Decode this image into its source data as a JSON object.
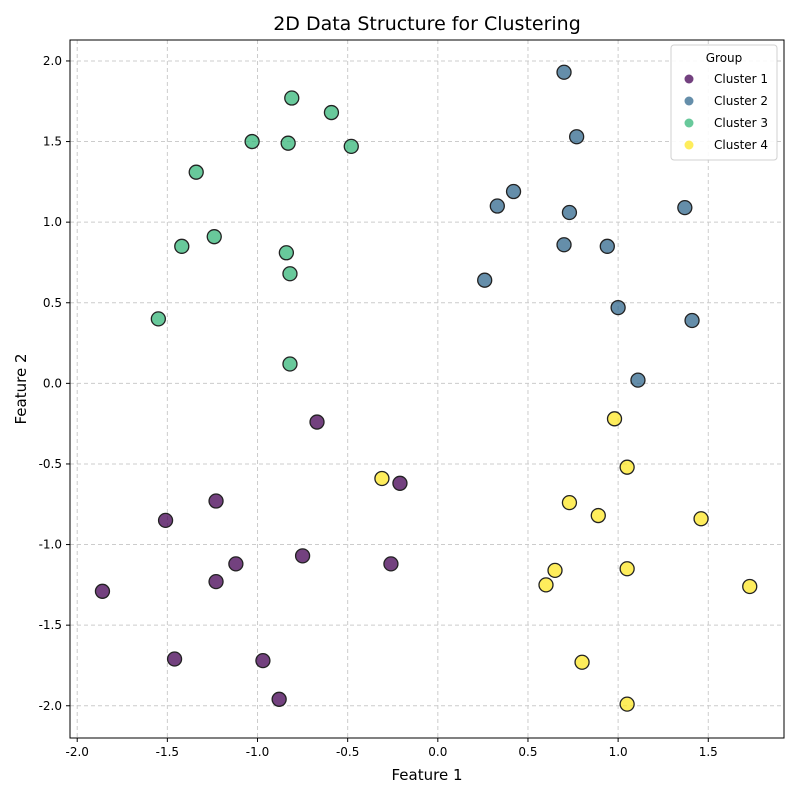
{
  "chart_data": {
    "type": "scatter",
    "title": "2D Data Structure for Clustering",
    "xlabel": "Feature 1",
    "ylabel": "Feature 2",
    "xlim": [
      -2.04,
      1.92
    ],
    "ylim": [
      -2.2,
      2.13
    ],
    "grid": true,
    "x_ticks": [
      -2.0,
      -1.5,
      -1.0,
      -0.5,
      0.0,
      0.5,
      1.0,
      1.5
    ],
    "x_tick_labels": [
      "-2.0",
      "-1.5",
      "-1.0",
      "-0.5",
      "0.0",
      "0.5",
      "1.0",
      "1.5"
    ],
    "y_ticks": [
      2.0,
      1.5,
      1.0,
      0.5,
      0.0,
      -0.5,
      -1.0,
      -1.5,
      -2.0
    ],
    "y_tick_labels": [
      "2.0",
      "1.5",
      "1.0",
      "0.5",
      "0.0",
      "-0.5",
      "-1.0",
      "-1.5",
      "-2.0"
    ],
    "legend": {
      "title": "Group",
      "placement": "top-right"
    },
    "series": [
      {
        "name": "Cluster 1",
        "color": "#440154",
        "points": [
          [
            -0.67,
            -0.24
          ],
          [
            -0.21,
            -0.62
          ],
          [
            -1.23,
            -0.73
          ],
          [
            -1.51,
            -0.85
          ],
          [
            -0.75,
            -1.07
          ],
          [
            -1.12,
            -1.12
          ],
          [
            -0.26,
            -1.12
          ],
          [
            -1.23,
            -1.23
          ],
          [
            -1.86,
            -1.29
          ],
          [
            -1.46,
            -1.71
          ],
          [
            -0.97,
            -1.72
          ],
          [
            -0.88,
            -1.96
          ]
        ]
      },
      {
        "name": "Cluster 2",
        "color": "#31688e",
        "points": [
          [
            0.7,
            1.93
          ],
          [
            0.77,
            1.53
          ],
          [
            0.42,
            1.19
          ],
          [
            0.33,
            1.1
          ],
          [
            0.73,
            1.06
          ],
          [
            1.37,
            1.09
          ],
          [
            0.7,
            0.86
          ],
          [
            0.94,
            0.85
          ],
          [
            0.26,
            0.64
          ],
          [
            1.0,
            0.47
          ],
          [
            1.41,
            0.39
          ],
          [
            1.11,
            0.02
          ]
        ]
      },
      {
        "name": "Cluster 3",
        "color": "#35b779",
        "points": [
          [
            -0.81,
            1.77
          ],
          [
            -0.59,
            1.68
          ],
          [
            -1.03,
            1.5
          ],
          [
            -0.83,
            1.49
          ],
          [
            -0.48,
            1.47
          ],
          [
            -1.34,
            1.31
          ],
          [
            -1.24,
            0.91
          ],
          [
            -1.42,
            0.85
          ],
          [
            -0.84,
            0.81
          ],
          [
            -0.82,
            0.68
          ],
          [
            -1.55,
            0.4
          ],
          [
            -0.82,
            0.12
          ]
        ]
      },
      {
        "name": "Cluster 4",
        "color": "#fde725",
        "points": [
          [
            0.98,
            -0.22
          ],
          [
            1.05,
            -0.52
          ],
          [
            -0.31,
            -0.59
          ],
          [
            0.73,
            -0.74
          ],
          [
            0.89,
            -0.82
          ],
          [
            1.46,
            -0.84
          ],
          [
            1.05,
            -1.15
          ],
          [
            0.65,
            -1.16
          ],
          [
            0.6,
            -1.25
          ],
          [
            1.73,
            -1.26
          ],
          [
            0.8,
            -1.73
          ],
          [
            1.05,
            -1.99
          ]
        ]
      }
    ]
  }
}
